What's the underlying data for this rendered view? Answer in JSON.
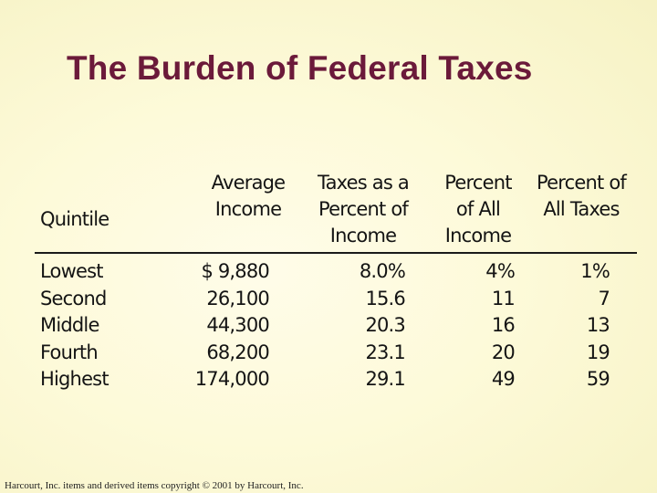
{
  "title": "The Burden of Federal Taxes",
  "table": {
    "headers": {
      "quintile": [
        "Quintile"
      ],
      "average_income": [
        "Average",
        "Income"
      ],
      "taxes_percent": [
        "Taxes as a",
        "Percent of",
        "Income"
      ],
      "percent_income": [
        "Percent",
        "of All",
        "Income"
      ],
      "percent_taxes": [
        "Percent of",
        "All Taxes"
      ]
    },
    "rows": [
      {
        "quintile": "Lowest",
        "average_income": "$ 9,880",
        "taxes_percent": "8.0%",
        "percent_income": "4%",
        "percent_taxes": "1%"
      },
      {
        "quintile": "Second",
        "average_income": "26,100",
        "taxes_percent": "15.6",
        "percent_income": "11",
        "percent_taxes": "7"
      },
      {
        "quintile": "Middle",
        "average_income": "44,300",
        "taxes_percent": "20.3",
        "percent_income": "16",
        "percent_taxes": "13"
      },
      {
        "quintile": "Fourth",
        "average_income": "68,200",
        "taxes_percent": "23.1",
        "percent_income": "20",
        "percent_taxes": "19"
      },
      {
        "quintile": "Highest",
        "average_income": "174,000",
        "taxes_percent": "29.1",
        "percent_income": "49",
        "percent_taxes": "59"
      }
    ]
  },
  "footer": "Harcourt, Inc. items and derived items copyright © 2001 by Harcourt, Inc.",
  "colors": {
    "title": "#6b1a3a",
    "background": "#fdfad9",
    "text": "#141414"
  }
}
